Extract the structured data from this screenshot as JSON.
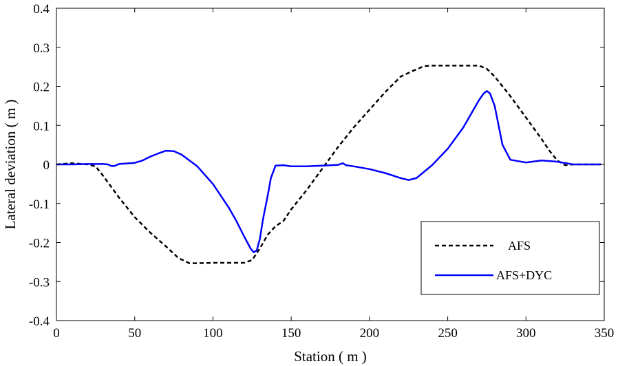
{
  "chart_data": {
    "type": "line",
    "xlabel": "Station ( m )",
    "ylabel": "Lateral deviation ( m )",
    "xlim": [
      0,
      350
    ],
    "ylim": [
      -0.4,
      0.4
    ],
    "x_ticks": [
      0,
      50,
      100,
      150,
      200,
      250,
      300,
      350
    ],
    "y_ticks": [
      -0.4,
      -0.3,
      -0.2,
      -0.1,
      0,
      0.1,
      0.2,
      0.3,
      0.4
    ],
    "x_tick_labels": [
      "0",
      "50",
      "100",
      "150",
      "200",
      "250",
      "300",
      "350"
    ],
    "y_tick_labels": [
      "-0.4",
      "-0.3",
      "-0.2",
      "-0.1",
      "0",
      "0.1",
      "0.2",
      "0.3",
      "0.4"
    ],
    "grid": false,
    "legend_position": "bottom-right",
    "series": [
      {
        "name": "AFS",
        "style": "dashed",
        "color": "#000000",
        "x": [
          0,
          10,
          20,
          25,
          30,
          40,
          50,
          60,
          70,
          78,
          85,
          90,
          100,
          110,
          120,
          125,
          130,
          135,
          140,
          145,
          150,
          160,
          170,
          180,
          190,
          200,
          210,
          220,
          228,
          235,
          240,
          250,
          260,
          270,
          275,
          280,
          290,
          300,
          310,
          315,
          320,
          325,
          330,
          340,
          348
        ],
        "y": [
          0.0,
          0.003,
          0.0,
          -0.005,
          -0.03,
          -0.085,
          -0.135,
          -0.175,
          -0.21,
          -0.24,
          -0.253,
          -0.253,
          -0.252,
          -0.252,
          -0.252,
          -0.245,
          -0.215,
          -0.18,
          -0.158,
          -0.145,
          -0.115,
          -0.065,
          -0.01,
          0.045,
          0.095,
          0.14,
          0.185,
          0.225,
          0.24,
          0.252,
          0.253,
          0.253,
          0.253,
          0.253,
          0.245,
          0.225,
          0.175,
          0.12,
          0.065,
          0.035,
          0.01,
          -0.002,
          0.0,
          0.0,
          0.0
        ]
      },
      {
        "name": "AFS+DYC",
        "style": "solid",
        "color": "#0000ff",
        "x": [
          0,
          10,
          20,
          30,
          33,
          35,
          37,
          40,
          50,
          55,
          60,
          65,
          70,
          75,
          80,
          90,
          100,
          110,
          115,
          120,
          124,
          126,
          128,
          130,
          132,
          135,
          137,
          140,
          145,
          150,
          160,
          170,
          180,
          183,
          185,
          190,
          200,
          210,
          220,
          225,
          230,
          240,
          250,
          260,
          265,
          270,
          273,
          275,
          277,
          280,
          283,
          285,
          290,
          300,
          310,
          320,
          330,
          340,
          348
        ],
        "y": [
          0.0,
          0.0,
          0.001,
          0.001,
          0.0,
          -0.004,
          -0.004,
          0.001,
          0.004,
          0.01,
          0.02,
          0.028,
          0.035,
          0.034,
          0.025,
          -0.005,
          -0.05,
          -0.11,
          -0.145,
          -0.185,
          -0.215,
          -0.225,
          -0.22,
          -0.19,
          -0.14,
          -0.08,
          -0.035,
          -0.003,
          -0.002,
          -0.005,
          -0.005,
          -0.003,
          -0.001,
          0.003,
          -0.002,
          -0.005,
          -0.012,
          -0.022,
          -0.035,
          -0.04,
          -0.035,
          -0.002,
          0.04,
          0.095,
          0.13,
          0.165,
          0.182,
          0.188,
          0.182,
          0.15,
          0.09,
          0.05,
          0.012,
          0.005,
          0.01,
          0.007,
          0.0,
          0.0,
          0.0
        ]
      }
    ]
  }
}
